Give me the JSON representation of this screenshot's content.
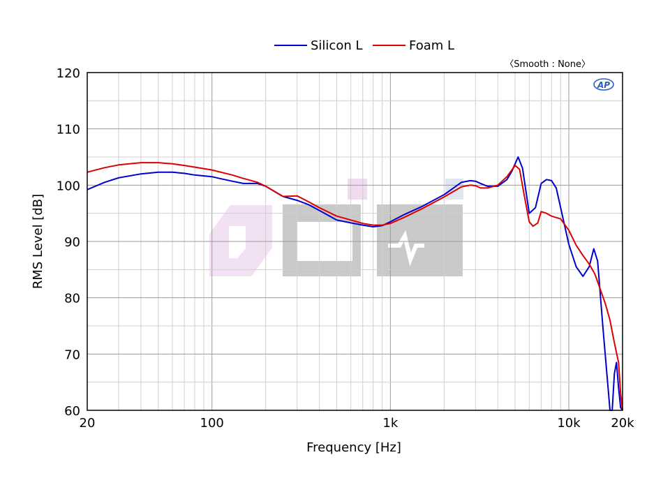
{
  "chart_data": {
    "type": "line",
    "xlabel": "Frequency [Hz]",
    "ylabel": "RMS Level [dB]",
    "x_scale": "log",
    "xlim": [
      20,
      20000
    ],
    "ylim": [
      60,
      120
    ],
    "x_ticks": [
      {
        "value": 20,
        "label": "20"
      },
      {
        "value": 100,
        "label": "100"
      },
      {
        "value": 1000,
        "label": "1k"
      },
      {
        "value": 10000,
        "label": "10k"
      },
      {
        "value": 20000,
        "label": "20k"
      }
    ],
    "y_ticks": [
      {
        "value": 60,
        "label": "60"
      },
      {
        "value": 70,
        "label": "70"
      },
      {
        "value": 80,
        "label": "80"
      },
      {
        "value": 90,
        "label": "90"
      },
      {
        "value": 100,
        "label": "100"
      },
      {
        "value": 110,
        "label": "110"
      },
      {
        "value": 120,
        "label": "120"
      }
    ],
    "grid": true,
    "legend_position": "top-center",
    "smoothing_note": "〈Smooth : None〉",
    "series": [
      {
        "name": "Silicon L",
        "color": "#0000cc",
        "x": [
          20,
          25,
          30,
          40,
          50,
          60,
          70,
          80,
          100,
          110,
          130,
          150,
          180,
          200,
          250,
          300,
          350,
          400,
          500,
          600,
          700,
          800,
          900,
          1000,
          1200,
          1500,
          2000,
          2500,
          2800,
          3000,
          3200,
          3500,
          4000,
          4500,
          4800,
          5000,
          5200,
          5500,
          6000,
          6500,
          7000,
          7500,
          8000,
          8500,
          9000,
          10000,
          11000,
          12000,
          13000,
          13800,
          14500,
          15500,
          17000,
          17500,
          18000,
          18500,
          19000,
          19500,
          20000
        ],
        "y": [
          99.2,
          100.5,
          101.3,
          102.0,
          102.3,
          102.3,
          102.1,
          101.8,
          101.5,
          101.2,
          100.7,
          100.3,
          100.3,
          99.8,
          98.0,
          97.3,
          96.5,
          95.5,
          93.8,
          93.3,
          92.9,
          92.6,
          92.8,
          93.5,
          94.8,
          96.2,
          98.3,
          100.5,
          100.8,
          100.7,
          100.3,
          99.8,
          99.8,
          101.0,
          102.5,
          103.8,
          105.0,
          103.0,
          95.0,
          96.0,
          100.3,
          101.0,
          100.8,
          99.5,
          96.0,
          89.5,
          85.5,
          83.8,
          85.5,
          88.7,
          86.5,
          75.0,
          60.0,
          59.5,
          66.5,
          68.5,
          64.0,
          60.5,
          60.0
        ]
      },
      {
        "name": "Foam L",
        "color": "#dd0000",
        "x": [
          20,
          25,
          30,
          40,
          50,
          60,
          70,
          80,
          100,
          130,
          150,
          180,
          200,
          250,
          300,
          350,
          400,
          500,
          600,
          700,
          800,
          900,
          1000,
          1200,
          1500,
          2000,
          2500,
          2800,
          3000,
          3200,
          3500,
          4000,
          4500,
          5000,
          5300,
          5600,
          6000,
          6300,
          6700,
          7000,
          7500,
          8000,
          9000,
          10000,
          11000,
          12000,
          13000,
          14000,
          15000,
          16000,
          17000,
          18000,
          19000,
          19500,
          20000
        ],
        "y": [
          102.3,
          103.1,
          103.6,
          104.0,
          104.0,
          103.8,
          103.5,
          103.2,
          102.7,
          101.8,
          101.2,
          100.5,
          99.8,
          98.0,
          98.1,
          97.0,
          96.0,
          94.5,
          93.8,
          93.2,
          92.9,
          92.9,
          93.2,
          94.3,
          95.8,
          97.9,
          99.7,
          100.0,
          99.9,
          99.5,
          99.5,
          100.0,
          101.5,
          103.5,
          102.8,
          98.5,
          93.5,
          92.7,
          93.3,
          95.3,
          95.0,
          94.5,
          94.0,
          92.0,
          89.3,
          87.5,
          86.0,
          84.2,
          81.5,
          79.0,
          76.0,
          72.0,
          68.5,
          63.0,
          60.0
        ]
      }
    ]
  }
}
